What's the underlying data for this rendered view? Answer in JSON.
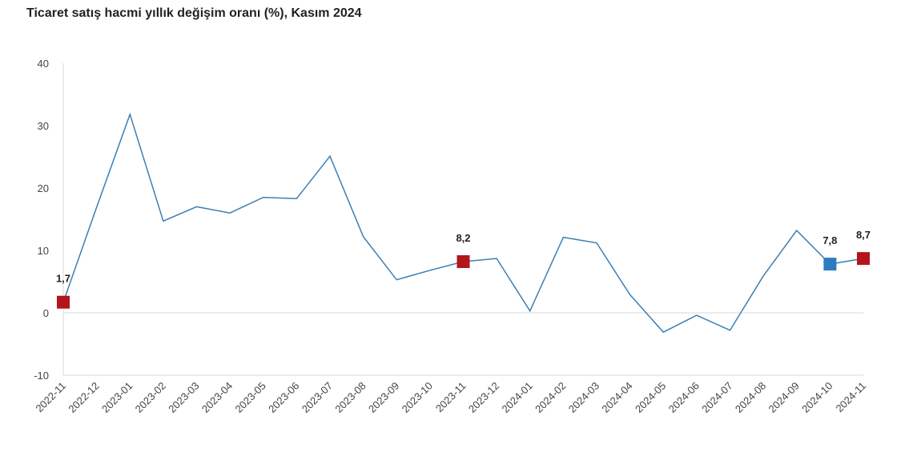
{
  "chart_data": {
    "type": "line",
    "title": "Ticaret satış hacmi yıllık değişim oranı (%), Kasım 2024",
    "xlabel": "",
    "ylabel": "",
    "ylim": [
      -10,
      40
    ],
    "yticks": [
      -10,
      0,
      10,
      20,
      30,
      40
    ],
    "categories": [
      "2022-11",
      "2022-12",
      "2023-01",
      "2023-02",
      "2023-03",
      "2023-04",
      "2023-05",
      "2023-06",
      "2023-07",
      "2023-08",
      "2023-09",
      "2023-10",
      "2023-11",
      "2023-12",
      "2024-01",
      "2024-02",
      "2024-03",
      "2024-04",
      "2024-05",
      "2024-06",
      "2024-07",
      "2024-08",
      "2024-09",
      "2024-10",
      "2024-11"
    ],
    "values": [
      1.7,
      16.9,
      31.8,
      14.7,
      17.0,
      16.0,
      18.5,
      18.3,
      25.1,
      12.2,
      5.3,
      6.8,
      8.2,
      8.7,
      0.3,
      12.1,
      11.2,
      2.9,
      -3.1,
      -0.4,
      -2.8,
      5.9,
      13.2,
      7.8,
      8.7
    ],
    "markers": [
      {
        "index": 0,
        "label": "1,7",
        "color": "#b3151c"
      },
      {
        "index": 12,
        "label": "8,2",
        "color": "#b3151c"
      },
      {
        "index": 23,
        "label": "7,8",
        "color": "#2e7bbf"
      },
      {
        "index": 24,
        "label": "8,7",
        "color": "#b3151c"
      }
    ],
    "line_color": "#3a7fb5",
    "grid": false
  }
}
